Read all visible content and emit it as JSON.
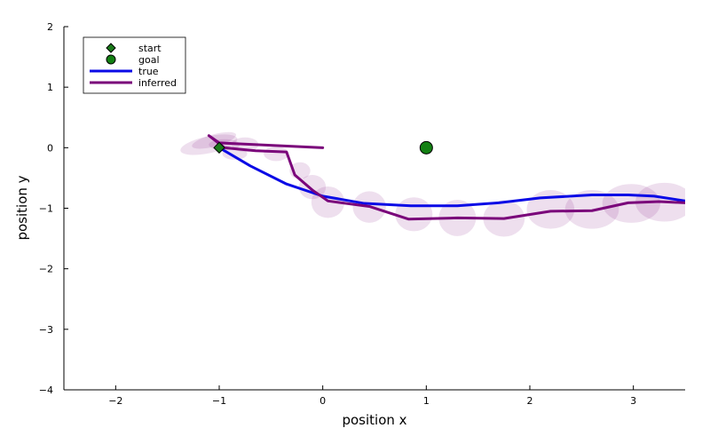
{
  "chart_data": {
    "type": "line",
    "xlabel": "position x",
    "ylabel": "position y",
    "xlim": [
      -2.5,
      3.5
    ],
    "ylim": [
      -4,
      2
    ],
    "xticks": [
      -2,
      -1,
      0,
      1,
      2,
      3
    ],
    "yticks": [
      -4,
      -3,
      -2,
      -1,
      0,
      1,
      2
    ],
    "grid": false,
    "legend_position": "top-left",
    "markers": [
      {
        "name": "start",
        "shape": "diamond",
        "x": -1.0,
        "y": 0.0,
        "color": "#1a7a1a"
      },
      {
        "name": "goal",
        "shape": "circle",
        "x": 1.0,
        "y": 0.0,
        "color": "#138013"
      }
    ],
    "series": [
      {
        "name": "true",
        "color": "#0a0ae6",
        "x": [
          -1.0,
          -0.7,
          -0.35,
          0.0,
          0.4,
          0.85,
          1.3,
          1.7,
          2.1,
          2.6,
          2.95,
          3.2,
          3.5
        ],
        "y": [
          0.0,
          -0.3,
          -0.6,
          -0.8,
          -0.92,
          -0.96,
          -0.96,
          -0.91,
          -0.83,
          -0.78,
          -0.78,
          -0.8,
          -0.88
        ]
      },
      {
        "name": "inferred",
        "color": "#7a047a",
        "x": [
          0.0,
          -1.0,
          -1.1,
          -0.95,
          -0.65,
          -0.35,
          -0.27,
          -0.1,
          0.05,
          0.45,
          0.83,
          1.3,
          1.75,
          2.2,
          2.6,
          2.95,
          3.25,
          3.5
        ],
        "y": [
          0.0,
          0.08,
          0.2,
          0.0,
          -0.05,
          -0.07,
          -0.45,
          -0.7,
          -0.88,
          -0.97,
          -1.18,
          -1.16,
          -1.17,
          -1.05,
          -1.04,
          -0.91,
          -0.89,
          -0.91
        ]
      }
    ],
    "uncertainty_ellipses": {
      "color": "#7a047a",
      "ellipses": [
        {
          "cx": -1.1,
          "cy": 0.05,
          "rx": 0.28,
          "ry": 0.14,
          "angle": -12
        },
        {
          "cx": -1.05,
          "cy": 0.12,
          "rx": 0.22,
          "ry": 0.1,
          "angle": -15
        },
        {
          "cx": -0.95,
          "cy": 0.05,
          "rx": 0.15,
          "ry": 0.09,
          "angle": 0
        },
        {
          "cx": -0.75,
          "cy": 0.05,
          "rx": 0.13,
          "ry": 0.12,
          "angle": 0
        },
        {
          "cx": -0.85,
          "cy": -0.1,
          "rx": 0.12,
          "ry": 0.1,
          "angle": 0
        },
        {
          "cx": -0.45,
          "cy": -0.1,
          "rx": 0.12,
          "ry": 0.12,
          "angle": 0
        },
        {
          "cx": -0.22,
          "cy": -0.38,
          "rx": 0.1,
          "ry": 0.14,
          "angle": 0
        },
        {
          "cx": -0.1,
          "cy": -0.65,
          "rx": 0.13,
          "ry": 0.2,
          "angle": 0
        },
        {
          "cx": 0.05,
          "cy": -0.9,
          "rx": 0.16,
          "ry": 0.26,
          "angle": 0
        },
        {
          "cx": 0.45,
          "cy": -0.98,
          "rx": 0.16,
          "ry": 0.26,
          "angle": 0
        },
        {
          "cx": 0.88,
          "cy": -1.1,
          "rx": 0.18,
          "ry": 0.28,
          "angle": 0
        },
        {
          "cx": 1.3,
          "cy": -1.16,
          "rx": 0.18,
          "ry": 0.3,
          "angle": 0
        },
        {
          "cx": 1.75,
          "cy": -1.17,
          "rx": 0.2,
          "ry": 0.3,
          "angle": 0
        },
        {
          "cx": 2.2,
          "cy": -1.02,
          "rx": 0.23,
          "ry": 0.32,
          "angle": 0
        },
        {
          "cx": 2.6,
          "cy": -1.02,
          "rx": 0.26,
          "ry": 0.32,
          "angle": 0
        },
        {
          "cx": 2.98,
          "cy": -0.92,
          "rx": 0.28,
          "ry": 0.32,
          "angle": 0
        },
        {
          "cx": 3.3,
          "cy": -0.9,
          "rx": 0.28,
          "ry": 0.32,
          "angle": 0
        }
      ]
    }
  }
}
